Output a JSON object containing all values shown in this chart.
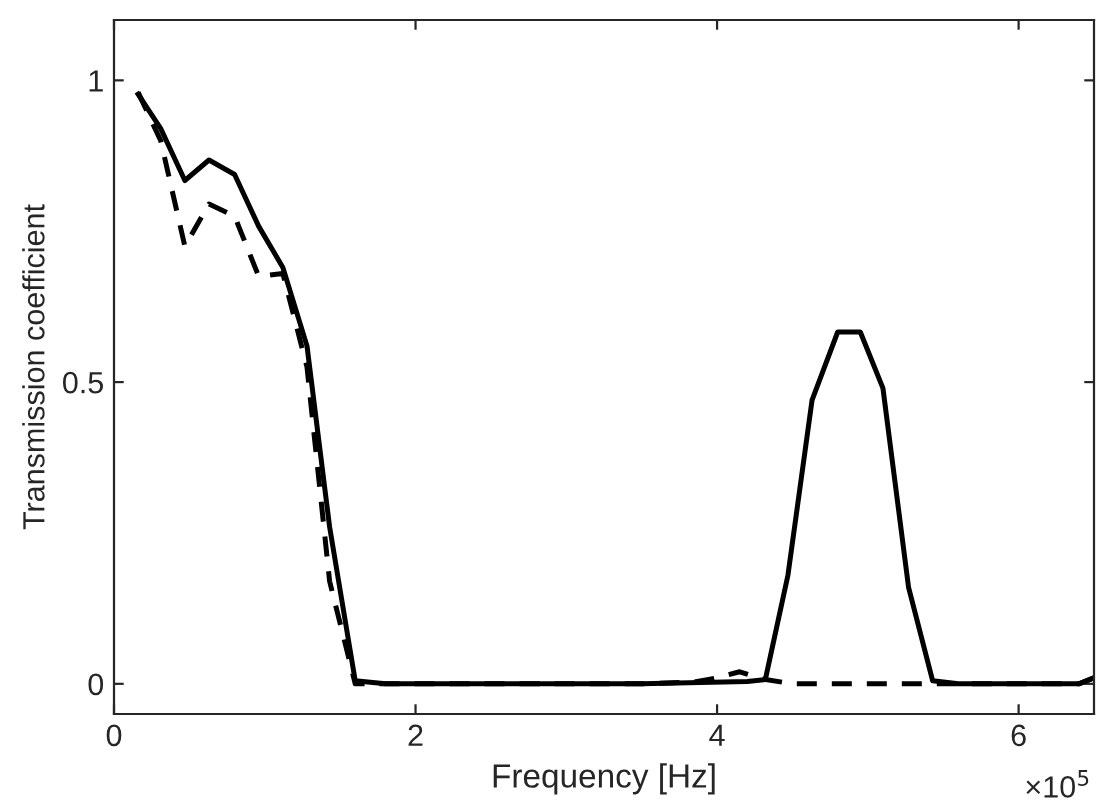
{
  "chart_data": {
    "type": "line",
    "xlabel": "Frequency [Hz]",
    "ylabel": "Transmission coefficient",
    "xlim": [
      0,
      6.5
    ],
    "ylim": [
      -0.05,
      1.1
    ],
    "xticks": [
      0,
      2,
      4,
      6
    ],
    "yticks": [
      0,
      0.5,
      1
    ],
    "annotations": [
      "×10$^{5}$"
    ],
    "grid": false,
    "legend": false,
    "marker": "none",
    "series": [
      {
        "color": "#000000",
        "line_style": "solid",
        "x": [
          0.16,
          0.31,
          0.47,
          0.63,
          0.8,
          0.96,
          1.12,
          1.28,
          1.43,
          1.6,
          1.8,
          2.5,
          3.5,
          4.2,
          4.32,
          4.47,
          4.63,
          4.8,
          4.95,
          5.1,
          5.27,
          5.43,
          5.6,
          6.2,
          6.4,
          6.5
        ],
        "values": [
          0.977,
          0.92,
          0.834,
          0.868,
          0.844,
          0.758,
          0.69,
          0.56,
          0.26,
          0.005,
          0.0,
          0.0,
          0.0,
          0.004,
          0.007,
          0.18,
          0.47,
          0.583,
          0.583,
          0.49,
          0.16,
          0.005,
          0.0,
          0.0,
          0.0,
          0.01
        ]
      },
      {
        "color": "#000000",
        "line_style": "dashed",
        "x": [
          0.16,
          0.31,
          0.47,
          0.63,
          0.8,
          0.96,
          1.12,
          1.28,
          1.43,
          1.6,
          1.8,
          2.5,
          3.5,
          3.85,
          4.0,
          4.15,
          4.3,
          4.5,
          5.6,
          6.4,
          6.5
        ],
        "values": [
          0.98,
          0.9,
          0.725,
          0.795,
          0.775,
          0.675,
          0.68,
          0.525,
          0.17,
          0.0,
          0.0,
          0.0,
          0.0,
          0.003,
          0.01,
          0.02,
          0.008,
          0.0,
          0.0,
          0.0,
          0.01
        ]
      }
    ]
  }
}
